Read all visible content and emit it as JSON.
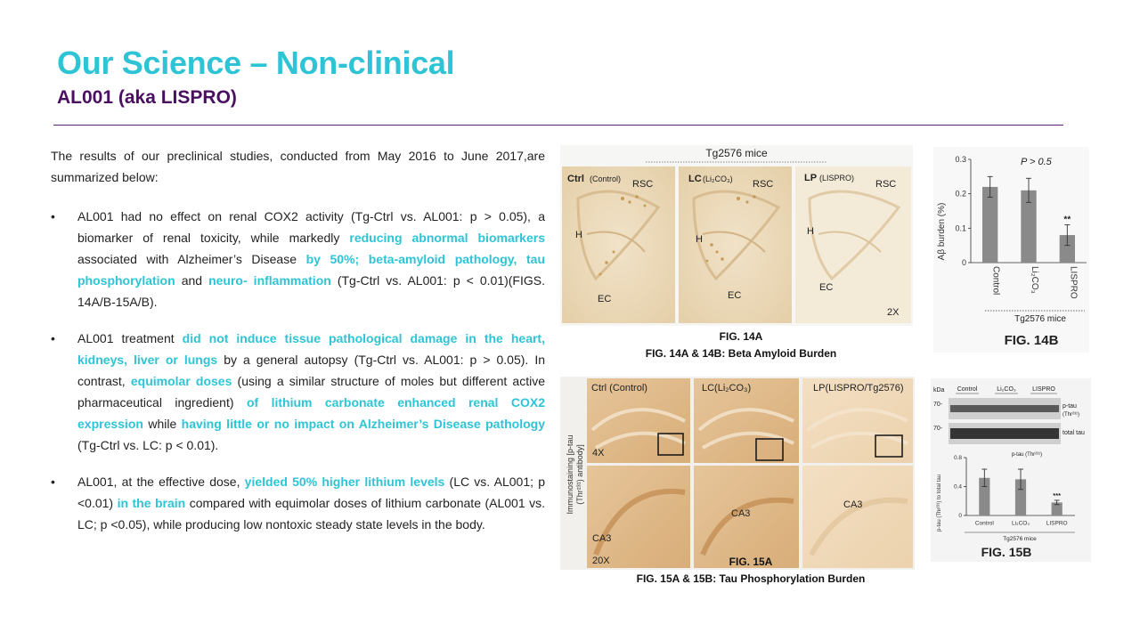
{
  "header": {
    "title": "Our Science – Non-clinical",
    "subtitle": "AL001 (aka LISPRO)"
  },
  "intro": "The results of our preclinical  studies, conducted from May 2016 to June 2017,are summarized below:",
  "bullets": [
    {
      "segments": [
        {
          "t": "AL001 had no effect on renal COX2 activity (Tg-Ctrl vs. AL001: p >  0.05), a biomarker of renal toxicity, while markedly ",
          "h": false
        },
        {
          "t": "reducing  abnormal biomarkers",
          "h": true
        },
        {
          "t": " associated with Alzheimer’s Disease ",
          "h": false
        },
        {
          "t": "by  50%; beta-amyloid pathology, tau phosphorylation",
          "h": true
        },
        {
          "t": " and ",
          "h": false
        },
        {
          "t": "neuro-  inflammation",
          "h": true
        },
        {
          "t": " (Tg-Ctrl vs. AL001: p < 0.01)(FIGS. 14A/B-15A/B).",
          "h": false
        }
      ]
    },
    {
      "segments": [
        {
          "t": "AL001 treatment ",
          "h": false
        },
        {
          "t": "did not induce tissue pathological damage in  the heart, kidneys, liver or lungs",
          "h": true
        },
        {
          "t": " by a general autopsy (Tg-Ctrl  vs. AL001: p > 0.05). In contrast, ",
          "h": false
        },
        {
          "t": "equimolar doses",
          "h": true
        },
        {
          "t": " (using a similar  structure of moles but different active pharmaceutical ingredient)  ",
          "h": false
        },
        {
          "t": "of lithium carbonate enhanced renal COX2 expression",
          "h": true
        },
        {
          "t": " while  ",
          "h": false
        },
        {
          "t": "having little or no impact on Alzheimer’s Disease pathology",
          "h": true
        },
        {
          "t": "  (Tg-Ctrl vs. LC: p < 0.01).",
          "h": false
        }
      ]
    },
    {
      "segments": [
        {
          "t": "AL001, at the effective dose, ",
          "h": false
        },
        {
          "t": "yielded 50% higher lithium levels",
          "h": true
        },
        {
          "t": "  (LC vs. AL001; p <0.01) ",
          "h": false
        },
        {
          "t": "in the brain",
          "h": true
        },
        {
          "t": " compared with equimolar  doses of lithium carbonate (AL001 vs. LC; p <0.05), while  producing low nontoxic steady state levels in the body.",
          "h": false
        }
      ]
    }
  ],
  "fig14a": {
    "header": "Tg2576 mice",
    "panels": [
      {
        "name": "Ctrl",
        "sub": "(Control)"
      },
      {
        "name": "LC",
        "sub": "(Li₂CO₃)"
      },
      {
        "name": "LP",
        "sub": "(LISPRO)"
      }
    ],
    "region_rsc": "RSC",
    "region_h": "H",
    "region_ec": "EC",
    "magnification": "2X",
    "caption": "FIG. 14A",
    "caption2": "FIG. 14A & 14B: Beta Amyloid Burden"
  },
  "fig14b": {
    "ylabel": "Aβ burden (%)",
    "pvalue": "P > 0.5",
    "sig": "**",
    "group_label": "Tg2576 mice",
    "fig_label": "FIG. 14B"
  },
  "fig15a": {
    "ylabel_line1": "Immunostaining [p-tau",
    "ylabel_line2": "(Thr²³¹) antibody]",
    "panels": [
      {
        "label": "Ctrl (Control)"
      },
      {
        "label": "LC(Li₂CO₃)"
      },
      {
        "label": "LP(LISPRO/Tg2576)"
      }
    ],
    "mag_top": "4X",
    "mag_bottom": "20X",
    "region": "CA3",
    "caption": "FIG. 15A",
    "caption2": "FIG. 15A & 15B: Tau Phosphorylation Burden"
  },
  "fig15b": {
    "kda": "kDa",
    "lanes": [
      "Control",
      "Li₂CO₃",
      "LISPRO"
    ],
    "band1_kda": "70-",
    "band1_label": "p-tau",
    "band1_sub": "(Thr²³¹)",
    "band2_kda": "70-",
    "band2_label": "total tau",
    "plot_title": "p-tau (Thr²³¹)",
    "ylabel": "p-tau (Thr²³¹) to total tau",
    "sig": "***",
    "group_label": "Tg2576 mice",
    "fig_label": "FIG. 15B"
  },
  "chart_data": [
    {
      "type": "bar",
      "title": "",
      "ylabel": "Aβ burden (%)",
      "xlabel": "Tg2576 mice",
      "categories": [
        "Control",
        "Li₂CO₃",
        "LISPRO"
      ],
      "values": [
        0.22,
        0.21,
        0.08
      ],
      "errors": [
        0.03,
        0.035,
        0.03
      ],
      "ylim": [
        0,
        0.3
      ],
      "yticks": [
        0,
        0.1,
        0.2,
        0.3
      ],
      "annotations": [
        "P > 0.5",
        "**"
      ],
      "grid": false
    },
    {
      "type": "bar",
      "title": "p-tau (Thr²³¹)",
      "ylabel": "p-tau (Thr²³¹) to total tau",
      "xlabel": "Tg2576 mice",
      "categories": [
        "Control",
        "Li₂CO₃",
        "LISPRO"
      ],
      "values": [
        0.52,
        0.5,
        0.18
      ],
      "errors": [
        0.12,
        0.14,
        0.03
      ],
      "ylim": [
        0,
        0.8
      ],
      "yticks": [
        0,
        0.4,
        0.8
      ],
      "annotations": [
        "***"
      ],
      "grid": false
    }
  ]
}
